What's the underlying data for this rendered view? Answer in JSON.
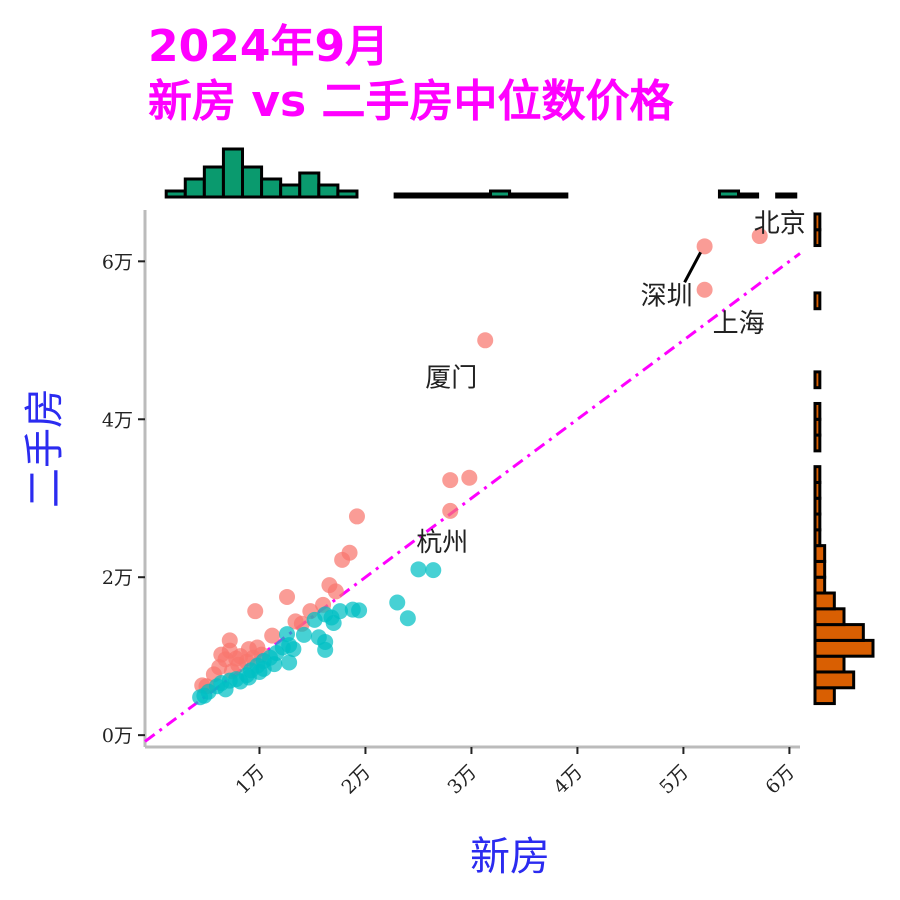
{
  "chart_data": {
    "type": "scatter",
    "title": [
      "2024年9月",
      "新房 vs 二手房中位数价格"
    ],
    "xlabel": "新房",
    "ylabel": "二手房",
    "xlim": [
      -800,
      61000
    ],
    "ylim": [
      -1500,
      66500
    ],
    "x_ticks": [
      10000,
      20000,
      30000,
      40000,
      50000,
      60000
    ],
    "x_tick_labels": [
      "1万",
      "2万",
      "3万",
      "4万",
      "5万",
      "6万"
    ],
    "y_ticks": [
      0,
      20000,
      40000,
      60000
    ],
    "y_tick_labels": [
      "0万",
      "2万",
      "4万",
      "6万"
    ],
    "reference_line": {
      "style": "dash-dot",
      "color": "#ff00ff",
      "slope": 1,
      "intercept": 0
    },
    "colors": {
      "series_above": "#f8766d",
      "series_below": "#00bfc4",
      "top_histogram": "#0a9a6e",
      "right_histogram": "#d95f02",
      "title": "#ff00ff",
      "axis_title": "#2b2bf0"
    },
    "series": [
      {
        "values": [
          [
            57200,
            63200
          ],
          [
            52000,
            61900
          ],
          [
            52000,
            56400
          ],
          [
            31300,
            50000
          ],
          [
            29800,
            32600
          ],
          [
            28000,
            32300
          ],
          [
            28000,
            28400
          ],
          [
            19200,
            27700
          ],
          [
            18500,
            23100
          ],
          [
            17800,
            22200
          ],
          [
            16600,
            19000
          ],
          [
            17200,
            18200
          ],
          [
            12600,
            17500
          ],
          [
            9600,
            15700
          ],
          [
            16000,
            16500
          ],
          [
            14800,
            15700
          ],
          [
            13400,
            14400
          ],
          [
            11200,
            12600
          ],
          [
            14000,
            14100
          ],
          [
            7200,
            12000
          ],
          [
            9800,
            11100
          ],
          [
            6400,
            10200
          ],
          [
            9000,
            10900
          ],
          [
            7200,
            10700
          ],
          [
            8200,
            10000
          ],
          [
            6800,
            9600
          ],
          [
            7800,
            9700
          ],
          [
            8800,
            9300
          ],
          [
            6200,
            8600
          ],
          [
            5700,
            7700
          ],
          [
            7400,
            8100
          ],
          [
            4600,
            6300
          ],
          [
            5000,
            6200
          ],
          [
            8000,
            8900
          ],
          [
            9400,
            9800
          ],
          [
            10200,
            10200
          ]
        ]
      },
      {
        "values": [
          [
            26400,
            20900
          ],
          [
            25000,
            21000
          ],
          [
            23000,
            16800
          ],
          [
            24000,
            14800
          ],
          [
            19400,
            15800
          ],
          [
            18800,
            15900
          ],
          [
            17600,
            15700
          ],
          [
            16200,
            15300
          ],
          [
            16800,
            14900
          ],
          [
            15200,
            14600
          ],
          [
            17000,
            14200
          ],
          [
            14200,
            12700
          ],
          [
            15600,
            12400
          ],
          [
            16200,
            11800
          ],
          [
            16200,
            10800
          ],
          [
            12600,
            12800
          ],
          [
            12800,
            11400
          ],
          [
            12200,
            11100
          ],
          [
            13200,
            10900
          ],
          [
            12800,
            9200
          ],
          [
            11600,
            10400
          ],
          [
            11000,
            9800
          ],
          [
            11400,
            9000
          ],
          [
            10400,
            9400
          ],
          [
            9800,
            8800
          ],
          [
            10400,
            8400
          ],
          [
            9200,
            8200
          ],
          [
            8800,
            7600
          ],
          [
            7800,
            7100
          ],
          [
            7200,
            6900
          ],
          [
            6400,
            6600
          ],
          [
            6000,
            6200
          ],
          [
            6800,
            5800
          ],
          [
            5200,
            5500
          ],
          [
            4800,
            5000
          ],
          [
            4400,
            4800
          ],
          [
            8200,
            6800
          ],
          [
            9000,
            7300
          ],
          [
            10000,
            8000
          ]
        ]
      }
    ],
    "annotations": [
      {
        "text": "北京",
        "x": 57200,
        "y": 63200,
        "pointer": false
      },
      {
        "text": "深圳",
        "x": 52000,
        "y": 61900,
        "pointer": true
      },
      {
        "text": "上海",
        "x": 52000,
        "y": 56400,
        "pointer": false
      },
      {
        "text": "厦门",
        "x": 31300,
        "y": 50000,
        "pointer": false
      },
      {
        "text": "杭州",
        "x": 28000,
        "y": 28400,
        "pointer": false
      }
    ],
    "top_histogram": {
      "bin_start": 1200,
      "bin_width": 1800,
      "counts": [
        1,
        3,
        5,
        8,
        5,
        3,
        2,
        4,
        2,
        1,
        0,
        0,
        0.5,
        0.5,
        0.5,
        0.5,
        0.5,
        1,
        0.5,
        0.5,
        0.5,
        0,
        0,
        0,
        0,
        0,
        0,
        0,
        0,
        1,
        0.5,
        0,
        0.5
      ],
      "max_count": 8
    },
    "right_histogram": {
      "bin_start": 4000,
      "bin_width": 2000,
      "counts": [
        2,
        4,
        3,
        6,
        5,
        3,
        2,
        1,
        1,
        1,
        0.5,
        0.5,
        0.5,
        0.5,
        0.5,
        0,
        0.5,
        0.5,
        0.5,
        0,
        0.5,
        0,
        0,
        0,
        0,
        0.5,
        0,
        0,
        0,
        0.5,
        0.5
      ],
      "max_count": 6
    }
  }
}
